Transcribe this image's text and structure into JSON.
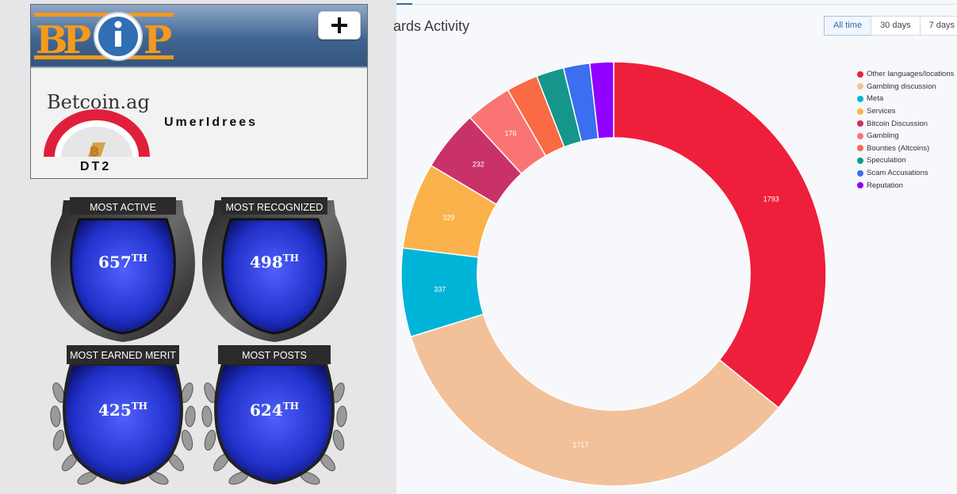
{
  "profile": {
    "logo_text": "BPiP",
    "add_label": "+",
    "avatar_text": "Betcoin.ag",
    "username": "UmerIdrees",
    "trust": "DT2"
  },
  "badges": [
    {
      "title": "MOST ACTIVE",
      "rank": "657",
      "suffix": "TH",
      "style": "shield"
    },
    {
      "title": "MOST RECOGNIZED",
      "rank": "498",
      "suffix": "TH",
      "style": "shield"
    },
    {
      "title": "MOST EARNED MERIT",
      "rank": "425",
      "suffix": "TH",
      "style": "wreath"
    },
    {
      "title": "MOST POSTS",
      "rank": "624",
      "suffix": "TH",
      "style": "wreath"
    }
  ],
  "chart": {
    "title": "ards Activity",
    "ranges": [
      "All time",
      "30 days",
      "7 days"
    ],
    "active_range": "All time"
  },
  "chart_data": {
    "type": "pie",
    "title": "ards Activity",
    "categories": [
      "Other languages/locations",
      "Gambling discussion",
      "Meta",
      "Services",
      "Bitcoin Discussion",
      "Gambling",
      "Bounties (Altcoins)",
      "Speculation",
      "Scam Accusations",
      "Reputation"
    ],
    "values": [
      1793,
      1717,
      337,
      329,
      232,
      176,
      120,
      105,
      100,
      90
    ],
    "data_labels": [
      "1793",
      "1717",
      "337",
      "329",
      "232",
      "176",
      "",
      "",
      "",
      ""
    ],
    "colors": [
      "#ee1f3b",
      "#f2c19a",
      "#00b4d8",
      "#fbb24a",
      "#c93268",
      "#fb7474",
      "#f96a45",
      "#14978a",
      "#3c6ef0",
      "#8f00ff"
    ],
    "donut": true,
    "legend_position": "right"
  }
}
